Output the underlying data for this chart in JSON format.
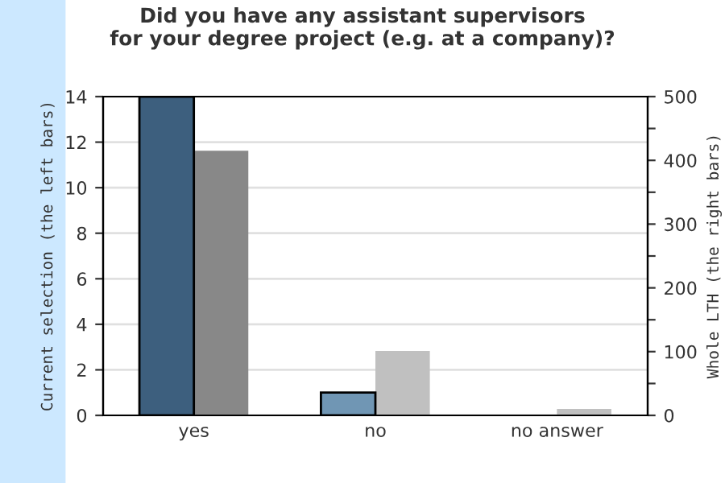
{
  "chart_data": {
    "type": "bar",
    "title": "Did you have any assistant supervisors\nfor your degree project (e.g. at a company)?",
    "categories": [
      "yes",
      "no",
      "no answer"
    ],
    "ylabel": "Current selection (the left bars)",
    "y2label": "Whole LTH (the right bars)",
    "series": [
      {
        "colors": [
          "#3d5f7e",
          "#7096b4",
          "#7096b4"
        ],
        "values": [
          14,
          1,
          null
        ]
      },
      {
        "colors": [
          "#888888",
          "#c0c0c0",
          "#c0c0c0"
        ],
        "values": [
          415,
          101,
          10
        ],
        "axis": "y2"
      }
    ],
    "ylim": [
      0,
      14
    ],
    "yticks": [
      0,
      2,
      4,
      6,
      8,
      10,
      12,
      14
    ],
    "y2lim": [
      0,
      500
    ],
    "y2ticks": [
      0,
      {
        "value": 50,
        "label": null
      },
      100,
      {
        "value": 150,
        "label": null
      },
      200,
      {
        "value": 250,
        "label": null
      },
      300,
      {
        "value": 350,
        "label": null
      },
      400,
      {
        "value": 450,
        "label": null
      },
      500
    ],
    "grid": "y",
    "legend": false
  }
}
